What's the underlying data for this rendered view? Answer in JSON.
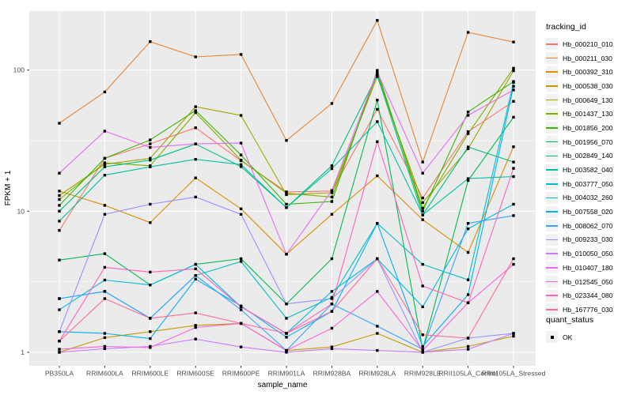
{
  "chart_data": {
    "type": "line",
    "title": "",
    "xlabel": "sample_name",
    "ylabel": "FPKM + 1",
    "yscale": "log10",
    "ylim": [
      0.8,
      262
    ],
    "grid": true,
    "panel_bg": "#EBEBEB",
    "grid_color": "#FFFFFF",
    "axis_text_color": "#4D4D4D",
    "yticks": [
      {
        "label": "100",
        "value": 100
      },
      {
        "label": "10",
        "value": 10
      },
      {
        "label": "1",
        "value": 1
      }
    ],
    "minor_gridline_values": [
      31.6,
      3.16
    ],
    "categories": [
      "PB350LA",
      "RRIM600LA",
      "RRIM600LE",
      "RRIM600SE",
      "RRIM600PE",
      "RRIM901LA",
      "RRIM928BA",
      "RRIM928LA",
      "RRIM928LE",
      "RRII105LA_Control",
      "RRII105LA_Stressed"
    ],
    "legend": {
      "series_title": "tracking_id",
      "quant_title": "quant_status",
      "quant_value": "OK"
    },
    "point_marker": {
      "shape": "square",
      "color": "#000000",
      "size": 3.4
    },
    "series": [
      {
        "name": "Hb_000210_010",
        "color": "#F8766D",
        "values": [
          7.3,
          23.7,
          30,
          39,
          22.8,
          13.7,
          13.9,
          52.7,
          12.4,
          36.6,
          60
        ]
      },
      {
        "name": "Hb_000211_030",
        "color": "#EA8331",
        "values": [
          42,
          70,
          159,
          124,
          129,
          31.7,
          58,
          225,
          22.3,
          185,
          158
        ]
      },
      {
        "name": "Hb_000392_310",
        "color": "#D89000",
        "values": [
          13.9,
          11.0,
          8.3,
          17.2,
          10.4,
          4.95,
          9.5,
          17.8,
          8.7,
          5.1,
          28.6
        ]
      },
      {
        "name": "Hb_000538_030",
        "color": "#C09B00",
        "values": [
          1.0,
          1.27,
          1.4,
          1.55,
          1.6,
          1.03,
          1.09,
          1.36,
          1.0,
          1.1,
          1.3
        ]
      },
      {
        "name": "Hb_000649_130",
        "color": "#A3A500",
        "values": [
          12.9,
          21.5,
          23.7,
          55,
          47.7,
          13.1,
          13.5,
          90,
          11.5,
          27.7,
          99
        ]
      },
      {
        "name": "Hb_001437_130",
        "color": "#7CAE00",
        "values": [
          12.1,
          22,
          21,
          49.9,
          23,
          13.4,
          12.6,
          95.4,
          10.5,
          35.4,
          103
        ]
      },
      {
        "name": "Hb_001856_200",
        "color": "#39B600",
        "values": [
          11.0,
          23.7,
          32,
          51.6,
          25,
          11.2,
          11.7,
          99.5,
          10,
          50.5,
          83
        ]
      },
      {
        "name": "Hb_001956_070",
        "color": "#00BB4E",
        "values": [
          4.5,
          5.0,
          3.0,
          4.2,
          4.6,
          2.2,
          4.6,
          61.3,
          1.05,
          16.5,
          46.3
        ]
      },
      {
        "name": "Hb_002849_140",
        "color": "#00BF7D",
        "values": [
          10.0,
          20.6,
          23,
          29.9,
          20.7,
          10.6,
          21,
          92.1,
          9.4,
          28.5,
          22.3
        ]
      },
      {
        "name": "Hb_003582_040",
        "color": "#00C1A3",
        "values": [
          8.5,
          18,
          20.6,
          23.3,
          21.4,
          10.6,
          20,
          43.1,
          9.4,
          17.0,
          17.6
        ]
      },
      {
        "name": "Hb_003777_050",
        "color": "#00BFC4",
        "values": [
          2.4,
          2.7,
          1.74,
          3.5,
          4.4,
          1.74,
          2.45,
          8.2,
          4.2,
          3.26,
          81.8
        ]
      },
      {
        "name": "Hb_004032_260",
        "color": "#00BAE0",
        "values": [
          2.0,
          3.25,
          3.0,
          4.2,
          2.1,
          1.36,
          2.7,
          4.6,
          2.1,
          7.5,
          11.2
        ]
      },
      {
        "name": "Hb_007558_020",
        "color": "#00B0F6",
        "values": [
          1.4,
          1.36,
          1.25,
          3.3,
          2.13,
          1.28,
          1.95,
          8.2,
          1.1,
          2.56,
          76.8
        ]
      },
      {
        "name": "Hb_008062_070",
        "color": "#35A2FF",
        "values": [
          2.4,
          2.7,
          1.74,
          3.5,
          2.0,
          1.03,
          2.2,
          1.53,
          1.05,
          8.2,
          9.3
        ]
      },
      {
        "name": "Hb_009233_030",
        "color": "#9590FF",
        "values": [
          1.4,
          9.5,
          11.2,
          12.6,
          9.5,
          2.2,
          2.4,
          4.6,
          1.0,
          1.26,
          1.36
        ]
      },
      {
        "name": "Hb_010050_050",
        "color": "#C77CFF",
        "values": [
          1.0,
          1.06,
          1.1,
          1.24,
          1.09,
          1.0,
          1.06,
          1.03,
          1.0,
          1.05,
          1.36
        ]
      },
      {
        "name": "Hb_010407_180",
        "color": "#E76BF3",
        "values": [
          18.6,
          36.9,
          28.3,
          30,
          30.4,
          4.95,
          14,
          97,
          18.6,
          47.8,
          72.3
        ]
      },
      {
        "name": "Hb_012545_050",
        "color": "#FA62DB",
        "values": [
          1.05,
          1.1,
          1.08,
          1.5,
          1.6,
          1.03,
          1.48,
          2.7,
          1.03,
          2.24,
          4.2
        ]
      },
      {
        "name": "Hb_023344_080",
        "color": "#FF62BC",
        "values": [
          1.2,
          4.0,
          3.7,
          3.9,
          2.1,
          1.36,
          2.2,
          31.1,
          2.95,
          2.24,
          20.1
        ]
      },
      {
        "name": "Hb_167776_030",
        "color": "#FF6A98",
        "values": [
          1.2,
          2.4,
          1.74,
          1.9,
          1.6,
          1.36,
          1.95,
          4.6,
          1.33,
          1.26,
          4.6
        ]
      }
    ]
  }
}
